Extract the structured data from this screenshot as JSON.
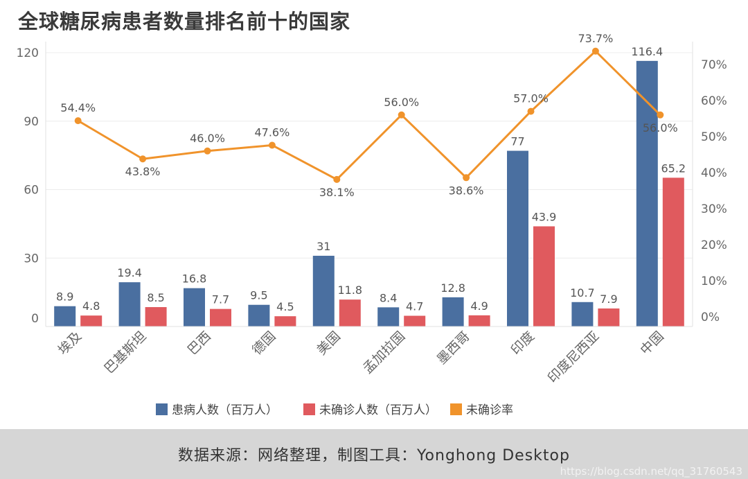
{
  "title": "全球糖尿病患者数量排名前十的国家",
  "footer": {
    "source": "数据来源：网络整理，制图工具：Yonghong Desktop",
    "watermark": "https://blog.csdn.net/qq_31760543"
  },
  "colors": {
    "patients": "#4a6fa0",
    "undiagnosed": "#e05a5e",
    "rate": "#f0932b",
    "axis_text": "#666666",
    "label_text": "#555555",
    "grid": "#ececec"
  },
  "chart_data": {
    "type": "bar",
    "title": "全球糖尿病患者数量排名前十的国家",
    "categories": [
      "埃及",
      "巴基斯坦",
      "巴西",
      "德国",
      "美国",
      "孟加拉国",
      "墨西哥",
      "印度",
      "印度尼西亚",
      "中国"
    ],
    "series": [
      {
        "name": "患病人数（百万人）",
        "type": "bar",
        "axis": "left",
        "values": [
          8.9,
          19.4,
          16.8,
          9.5,
          31,
          8.4,
          12.8,
          77,
          10.7,
          116.4
        ],
        "labels": [
          "8.9",
          "19.4",
          "16.8",
          "9.5",
          "31",
          "8.4",
          "12.8",
          "77",
          "10.7",
          "116.4"
        ]
      },
      {
        "name": "未确诊人数（百万人）",
        "type": "bar",
        "axis": "left",
        "values": [
          4.8,
          8.5,
          7.7,
          4.5,
          11.8,
          4.7,
          4.9,
          43.9,
          7.9,
          65.2
        ],
        "labels": [
          "4.8",
          "8.5",
          "7.7",
          "4.5",
          "11.8",
          "4.7",
          "4.9",
          "43.9",
          "7.9",
          "65.2"
        ]
      },
      {
        "name": "未确诊率",
        "type": "line",
        "axis": "right",
        "values": [
          54.4,
          43.8,
          46.0,
          47.6,
          38.1,
          56.0,
          38.6,
          57.0,
          73.7,
          56.0
        ],
        "labels": [
          "54.4%",
          "43.8%",
          "46.0%",
          "47.6%",
          "38.1%",
          "56.0%",
          "38.6%",
          "57.0%",
          "73.7%",
          "56.0%"
        ],
        "label_positions": [
          "above",
          "below",
          "above",
          "above",
          "below",
          "above",
          "below",
          "above",
          "above",
          "below"
        ]
      }
    ],
    "y_left": {
      "ticks": [
        0,
        30,
        60,
        90,
        120
      ],
      "tick_labels": [
        "0",
        "30",
        "60",
        "90",
        "120"
      ]
    },
    "y_right": {
      "ticks": [
        0,
        10,
        20,
        30,
        40,
        50,
        60,
        70
      ],
      "tick_labels": [
        "0%",
        "10%",
        "20%",
        "30%",
        "40%",
        "50%",
        "60%",
        "70%"
      ]
    },
    "legend": {
      "position": "bottom-center",
      "items": [
        {
          "label": "患病人数（百万人）",
          "color": "#4a6fa0"
        },
        {
          "label": "未确诊人数（百万人）",
          "color": "#e05a5e"
        },
        {
          "label": "未确诊率",
          "color": "#f0932b"
        }
      ]
    }
  }
}
